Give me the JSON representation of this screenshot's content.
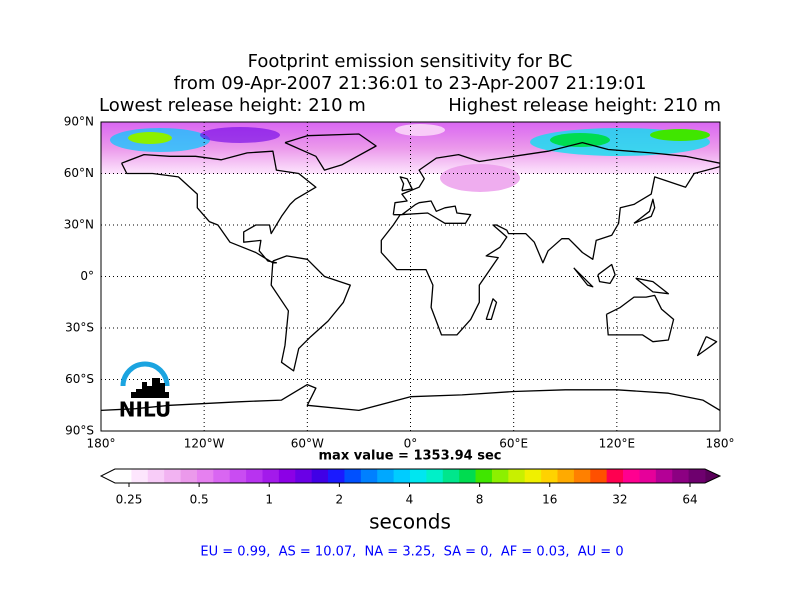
{
  "header": {
    "title_lines": [
      "Footprint emission sensitivity for BC",
      "from 09-Apr-2007 21:36:01 to 23-Apr-2007 21:19:01"
    ],
    "lowest_height": "Lowest release height: 210 m",
    "highest_height": "Highest release height: 210 m"
  },
  "map": {
    "xlim": [
      -180,
      180
    ],
    "ylim": [
      -90,
      90
    ],
    "xticks": [
      {
        "value": -180,
        "label": "180°"
      },
      {
        "value": -120,
        "label": "120°W"
      },
      {
        "value": -60,
        "label": "60°W"
      },
      {
        "value": 0,
        "label": "0°"
      },
      {
        "value": 60,
        "label": "60°E"
      },
      {
        "value": 120,
        "label": "120°E"
      },
      {
        "value": 180,
        "label": "180°"
      }
    ],
    "yticks": [
      {
        "value": 90,
        "label": "90°N"
      },
      {
        "value": 60,
        "label": "60°N"
      },
      {
        "value": 30,
        "label": "30°N"
      },
      {
        "value": 0,
        "label": "0°"
      },
      {
        "value": -30,
        "label": "30°S"
      },
      {
        "value": -60,
        "label": "60°S"
      },
      {
        "value": -90,
        "label": "90°S"
      }
    ],
    "grid": true,
    "logo": "NILU"
  },
  "max_value": "max value = 1353.94 sec",
  "colorbar": {
    "scale": "log",
    "ticks": [
      0.25,
      0.5,
      1,
      2,
      4,
      8,
      16,
      32,
      64
    ],
    "label": "seconds",
    "colors": [
      "#ffffff",
      "#fde6fd",
      "#f8ccf8",
      "#f2b3f2",
      "#eb99eb",
      "#e680f0",
      "#d966f2",
      "#c94cf2",
      "#b833f0",
      "#a31aeb",
      "#8c00e6",
      "#6a00e6",
      "#4000e6",
      "#1a1aff",
      "#0050ff",
      "#0080ff",
      "#00a8ff",
      "#00ccff",
      "#00e6f0",
      "#00f0c8",
      "#00e68c",
      "#00dc50",
      "#40e600",
      "#8cf000",
      "#c8f000",
      "#f0f000",
      "#ffd200",
      "#ffaa00",
      "#ff8000",
      "#ff5000",
      "#ff0050",
      "#ff0090",
      "#e6009a",
      "#b40096",
      "#8c0082",
      "#6e006e"
    ],
    "under_color": "#ffffff",
    "over_color": "#5a005a"
  },
  "footer": "EU = 0.99,  AS = 10.07,  NA = 3.25,  SA = 0,  AF = 0.03,  AU = 0"
}
